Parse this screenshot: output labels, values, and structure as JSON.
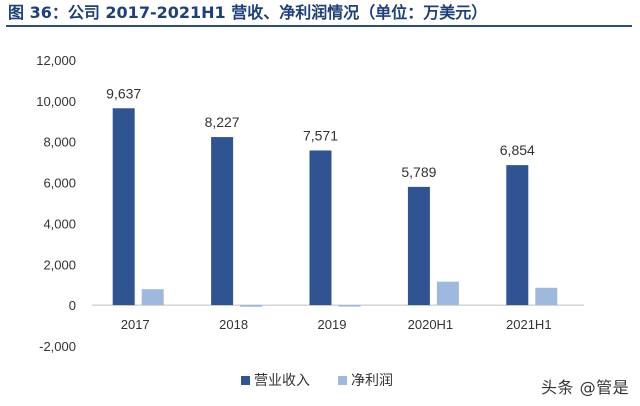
{
  "figure": {
    "label": "图 36：",
    "title": "公司 2017-2021H1 营收、净利润情况（单位：万美元）"
  },
  "watermark": "头条 @管是",
  "colors": {
    "title": "#1f3f7a",
    "rule": "#2c4d7f",
    "revenue": "#2f5491",
    "net_profit": "#9fb8de",
    "axis": "#bfbfbf",
    "text": "#333333"
  },
  "chart_data": {
    "type": "bar",
    "title": "公司 2017-2021H1 营收、净利润情况（单位：万美元）",
    "categories": [
      "2017",
      "2018",
      "2019",
      "2020H1",
      "2021H1"
    ],
    "series": [
      {
        "name": "营业收入",
        "color": "#2f5491",
        "values": [
          9637,
          8227,
          7571,
          5789,
          6854
        ],
        "data_labels": [
          "9,637",
          "8,227",
          "7,571",
          "5,789",
          "6,854"
        ]
      },
      {
        "name": "净利润",
        "color": "#9fb8de",
        "values": [
          780,
          -80,
          -60,
          1150,
          850
        ]
      }
    ],
    "yticks": [
      12000,
      10000,
      8000,
      6000,
      4000,
      2000,
      0,
      -2000
    ],
    "ytick_labels": [
      "12,000",
      "10,000",
      "8,000",
      "6,000",
      "4,000",
      "2,000",
      "0",
      "-2,000"
    ],
    "ylim": [
      -2000,
      12000
    ],
    "xlabel": "",
    "ylabel": "",
    "grid": false,
    "legend": "bottom-center"
  }
}
